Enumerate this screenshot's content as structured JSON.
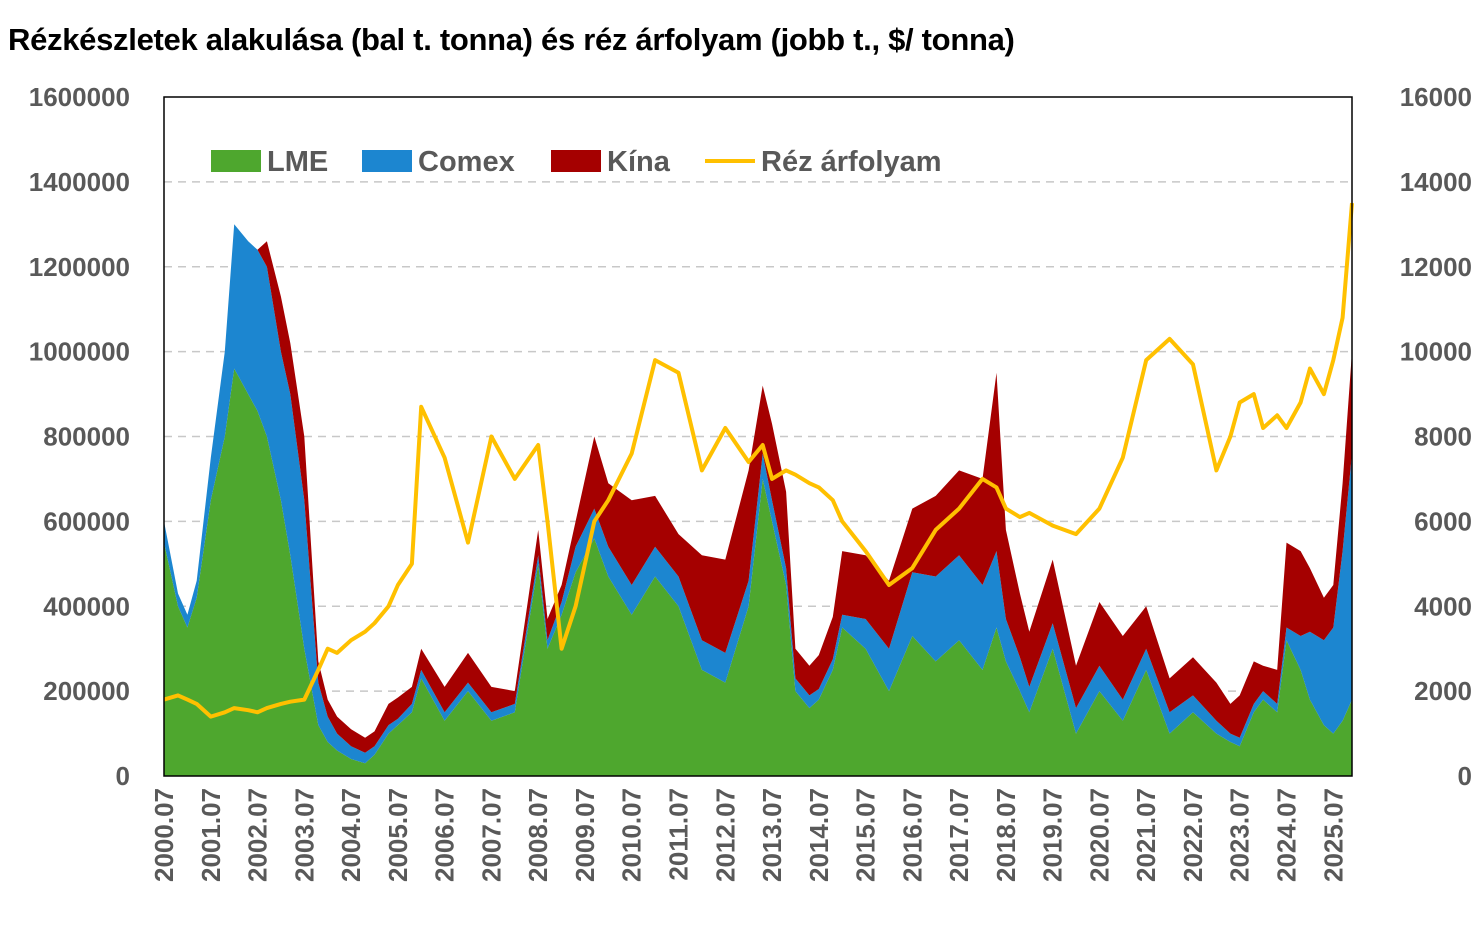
{
  "title": "Rézkészletek alakulása (bal t. tonna) és réz árfolyam (jobb t., $/ tonna)",
  "colors": {
    "lme": "#4ea72e",
    "comex": "#1c86d0",
    "kina": "#a50000",
    "price": "#ffc000",
    "grid": "#c8c8c8",
    "axis": "#595959"
  },
  "chart_data": {
    "type": "area",
    "stacked": true,
    "title": "Rézkészletek alakulása (bal t. tonna) és réz árfolyam (jobb t., $/ tonna)",
    "x": [
      2000.5,
      2000.8,
      2001.0,
      2001.2,
      2001.5,
      2001.8,
      2002.0,
      2002.3,
      2002.5,
      2002.7,
      2003.0,
      2003.2,
      2003.5,
      2003.8,
      2004.0,
      2004.2,
      2004.5,
      2004.8,
      2005.0,
      2005.3,
      2005.5,
      2005.8,
      2006.0,
      2006.5,
      2007.0,
      2007.5,
      2008.0,
      2008.5,
      2008.7,
      2009.0,
      2009.3,
      2009.7,
      2010.0,
      2010.5,
      2011.0,
      2011.5,
      2012.0,
      2012.5,
      2013.0,
      2013.3,
      2013.5,
      2013.8,
      2014.0,
      2014.3,
      2014.5,
      2014.8,
      2015.0,
      2015.5,
      2016.0,
      2016.5,
      2017.0,
      2017.5,
      2018.0,
      2018.3,
      2018.5,
      2018.8,
      2019.0,
      2019.5,
      2020.0,
      2020.5,
      2021.0,
      2021.5,
      2022.0,
      2022.5,
      2023.0,
      2023.3,
      2023.5,
      2023.8,
      2024.0,
      2024.3,
      2024.5,
      2024.8,
      2025.0,
      2025.3,
      2025.5,
      2025.7,
      2025.9
    ],
    "series": [
      {
        "name": "LME",
        "axis": "left",
        "values": [
          550000,
          400000,
          350000,
          420000,
          650000,
          800000,
          960000,
          900000,
          860000,
          800000,
          650000,
          520000,
          300000,
          120000,
          80000,
          60000,
          40000,
          30000,
          50000,
          100000,
          120000,
          150000,
          230000,
          130000,
          200000,
          130000,
          150000,
          500000,
          300000,
          380000,
          480000,
          560000,
          470000,
          380000,
          470000,
          400000,
          250000,
          220000,
          400000,
          700000,
          600000,
          450000,
          200000,
          160000,
          180000,
          250000,
          350000,
          300000,
          200000,
          330000,
          270000,
          320000,
          250000,
          350000,
          270000,
          200000,
          150000,
          300000,
          100000,
          200000,
          130000,
          250000,
          100000,
          150000,
          100000,
          80000,
          70000,
          150000,
          180000,
          150000,
          320000,
          250000,
          180000,
          120000,
          100000,
          130000,
          180000
        ]
      },
      {
        "name": "Comex",
        "axis": "left",
        "values": [
          50000,
          30000,
          30000,
          40000,
          100000,
          200000,
          340000,
          360000,
          380000,
          400000,
          350000,
          380000,
          350000,
          100000,
          60000,
          40000,
          30000,
          25000,
          20000,
          20000,
          15000,
          20000,
          20000,
          20000,
          20000,
          20000,
          20000,
          20000,
          20000,
          30000,
          60000,
          70000,
          70000,
          70000,
          70000,
          70000,
          70000,
          70000,
          60000,
          60000,
          50000,
          40000,
          30000,
          30000,
          25000,
          25000,
          30000,
          70000,
          100000,
          150000,
          200000,
          200000,
          200000,
          180000,
          100000,
          80000,
          60000,
          60000,
          60000,
          60000,
          50000,
          50000,
          50000,
          40000,
          30000,
          20000,
          20000,
          20000,
          20000,
          20000,
          30000,
          80000,
          160000,
          200000,
          250000,
          400000,
          580000
        ]
      },
      {
        "name": "Kína",
        "axis": "left",
        "values": [
          0,
          0,
          0,
          0,
          0,
          0,
          0,
          0,
          0,
          60000,
          130000,
          120000,
          150000,
          50000,
          40000,
          40000,
          40000,
          35000,
          35000,
          50000,
          50000,
          40000,
          50000,
          60000,
          70000,
          60000,
          30000,
          60000,
          50000,
          40000,
          60000,
          170000,
          150000,
          200000,
          120000,
          100000,
          200000,
          220000,
          260000,
          160000,
          180000,
          180000,
          70000,
          70000,
          80000,
          100000,
          150000,
          150000,
          160000,
          150000,
          190000,
          200000,
          250000,
          420000,
          210000,
          150000,
          130000,
          150000,
          100000,
          150000,
          150000,
          100000,
          80000,
          90000,
          90000,
          70000,
          100000,
          100000,
          60000,
          80000,
          200000,
          200000,
          150000,
          100000,
          100000,
          160000,
          240000
        ]
      },
      {
        "name": "Réz árfolyam",
        "axis": "right",
        "type": "line",
        "values": [
          1800,
          1900,
          1800,
          1700,
          1400,
          1500,
          1600,
          1550,
          1500,
          1600,
          1700,
          1750,
          1800,
          2500,
          3000,
          2900,
          3200,
          3400,
          3600,
          4000,
          4500,
          5000,
          8700,
          7500,
          5500,
          8000,
          7000,
          7800,
          6000,
          3000,
          4000,
          6000,
          6500,
          7600,
          9800,
          9500,
          7200,
          8200,
          7400,
          7800,
          7000,
          7200,
          7100,
          6900,
          6800,
          6500,
          6000,
          5300,
          4500,
          4900,
          5800,
          6300,
          7000,
          6800,
          6300,
          6100,
          6200,
          5900,
          5700,
          6300,
          7500,
          9800,
          10300,
          9700,
          7200,
          8000,
          8800,
          9000,
          8200,
          8500,
          8200,
          8800,
          9600,
          9000,
          9800,
          10800,
          13500
        ]
      }
    ],
    "left_axis": {
      "min": 0,
      "max": 1600000,
      "ticks": [
        "0",
        "200000",
        "400000",
        "600000",
        "800000",
        "1000000",
        "1200000",
        "1400000",
        "1600000"
      ]
    },
    "right_axis": {
      "min": 0,
      "max": 16000,
      "ticks": [
        "0",
        "2000",
        "4000",
        "6000",
        "8000",
        "10000",
        "12000",
        "14000",
        "16000"
      ]
    },
    "x_range": [
      2000.5,
      2025.9
    ],
    "x_ticks": [
      {
        "value": 2000.5,
        "label": "2000.07"
      },
      {
        "value": 2001.5,
        "label": "2001.07"
      },
      {
        "value": 2002.5,
        "label": "2002.07"
      },
      {
        "value": 2003.5,
        "label": "2003.07"
      },
      {
        "value": 2004.5,
        "label": "2004.07"
      },
      {
        "value": 2005.5,
        "label": "2005.07"
      },
      {
        "value": 2006.5,
        "label": "2006.07"
      },
      {
        "value": 2007.5,
        "label": "2007.07"
      },
      {
        "value": 2008.5,
        "label": "2008.07"
      },
      {
        "value": 2009.5,
        "label": "2009.07"
      },
      {
        "value": 2010.5,
        "label": "2010.07"
      },
      {
        "value": 2011.5,
        "label": "2011.07"
      },
      {
        "value": 2012.5,
        "label": "2012.07"
      },
      {
        "value": 2013.5,
        "label": "2013.07"
      },
      {
        "value": 2014.5,
        "label": "2014.07"
      },
      {
        "value": 2015.5,
        "label": "2015.07"
      },
      {
        "value": 2016.5,
        "label": "2016.07"
      },
      {
        "value": 2017.5,
        "label": "2017.07"
      },
      {
        "value": 2018.5,
        "label": "2018.07"
      },
      {
        "value": 2019.5,
        "label": "2019.07"
      },
      {
        "value": 2020.5,
        "label": "2020.07"
      },
      {
        "value": 2021.5,
        "label": "2021.07"
      },
      {
        "value": 2022.5,
        "label": "2022.07"
      },
      {
        "value": 2023.5,
        "label": "2023.07"
      },
      {
        "value": 2024.5,
        "label": "2024.07"
      },
      {
        "value": 2025.5,
        "label": "2025.07"
      }
    ],
    "legend": [
      "LME",
      "Comex",
      "Kína",
      "Réz árfolyam"
    ],
    "legend_position": "top-left inside",
    "grid": true
  }
}
